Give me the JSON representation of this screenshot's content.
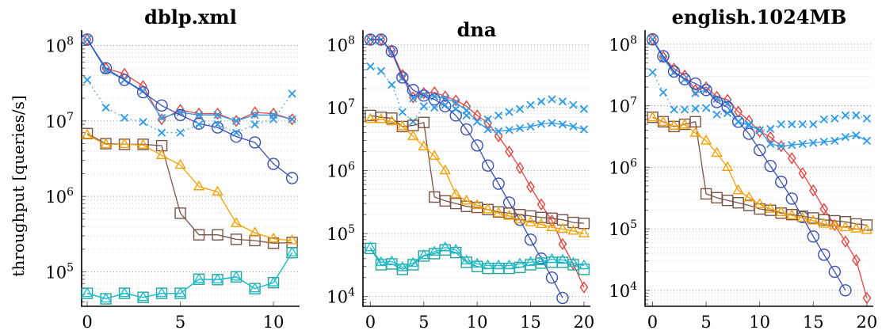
{
  "chart_data": [
    {
      "type": "line",
      "title": "dblp.xml",
      "xlabel": "",
      "ylabel": "throughput [queries/s]",
      "yscale": "log",
      "xlim": [
        -0.3,
        11.4
      ],
      "ylim": [
        35000,
        160000000
      ],
      "xticks": [
        0,
        5,
        10
      ],
      "yticks": [
        100000,
        1000000,
        10000000,
        100000000
      ],
      "ytick_labels": [
        "10^5",
        "10^6",
        "10^7",
        "10^8"
      ],
      "grid": true,
      "x": [
        0,
        1,
        2,
        3,
        4,
        5,
        6,
        7,
        8,
        9,
        10,
        11
      ],
      "series": [
        {
          "name": "red-diamond",
          "color": "#e8433c",
          "marker": "diamond",
          "style": "solid",
          "values": [
            120000000,
            50000000,
            42000000,
            29000000,
            10500000,
            14000000,
            12500000,
            12500000,
            10000000,
            13000000,
            12500000,
            10500000
          ]
        },
        {
          "name": "lightblue-x-solid",
          "color": "#2e9be8",
          "marker": "x",
          "style": "solid",
          "values": [
            120000000,
            47000000,
            35000000,
            25000000,
            11000000,
            13000000,
            12000000,
            12000000,
            10000000,
            12000000,
            12000000,
            10500000
          ]
        },
        {
          "name": "blue-circle",
          "color": "#3a4fb5",
          "marker": "circle",
          "style": "solid",
          "values": [
            120000000,
            50000000,
            35000000,
            24000000,
            16000000,
            12000000,
            9200000,
            8200000,
            6200000,
            5200000,
            2700000,
            1750000
          ]
        },
        {
          "name": "lightblue-x-dotted",
          "color": "#2e9be8",
          "marker": "x",
          "style": "dotted",
          "values": [
            35000000,
            15000000,
            11000000,
            9700000,
            7000000,
            7000000,
            9000000,
            9000000,
            7000000,
            9000000,
            10500000,
            23000000
          ]
        },
        {
          "name": "brown-square",
          "color": "#7a5448",
          "marker": "square",
          "style": "solid",
          "values": [
            6800000,
            5000000,
            4900000,
            4900000,
            4700000,
            600000,
            310000,
            310000,
            270000,
            260000,
            240000,
            245000
          ]
        },
        {
          "name": "orange-triangle",
          "color": "#f5a000",
          "marker": "triangle",
          "style": "solid",
          "values": [
            6500000,
            4900000,
            4900000,
            4800000,
            3500000,
            2600000,
            1350000,
            1150000,
            440000,
            330000,
            275000,
            260000
          ]
        },
        {
          "name": "teal-square",
          "color": "#26a69a",
          "marker": "square",
          "style": "solid",
          "values": [
            52000,
            44000,
            52000,
            46000,
            52000,
            52000,
            80000,
            79000,
            86000,
            60000,
            72000,
            180000
          ]
        },
        {
          "name": "cyan-triangle",
          "color": "#1fbcd2",
          "marker": "triangle",
          "style": "solid",
          "values": [
            52000,
            44000,
            52000,
            46000,
            52000,
            52000,
            80000,
            79000,
            86000,
            60000,
            72000,
            180000
          ]
        }
      ]
    },
    {
      "type": "line",
      "title": "dna",
      "xlabel": "",
      "ylabel": "",
      "yscale": "log",
      "xlim": [
        -0.7,
        20.6
      ],
      "ylim": [
        7000,
        170000000
      ],
      "xticks": [
        0,
        5,
        10,
        15,
        20
      ],
      "yticks": [
        10000,
        100000,
        1000000,
        10000000,
        100000000
      ],
      "ytick_labels": [
        "10^4",
        "10^5",
        "10^6",
        "10^7",
        "10^8"
      ],
      "grid": true,
      "x": [
        0,
        1,
        2,
        3,
        4,
        5,
        6,
        7,
        8,
        9,
        10,
        11,
        12,
        13,
        14,
        15,
        16,
        17,
        18,
        19,
        20
      ],
      "series": [
        {
          "name": "red-diamond",
          "color": "#e8433c",
          "marker": "diamond",
          "style": "solid",
          "values": [
            120000000,
            120000000,
            80000000,
            33000000,
            14500000,
            17000000,
            17500000,
            15000000,
            13000000,
            10500000,
            7500000,
            5700000,
            3500000,
            2000000,
            1100000,
            550000,
            290000,
            160000,
            68000,
            33000,
            14000
          ]
        },
        {
          "name": "lightblue-x-solid",
          "color": "#2e9be8",
          "marker": "x",
          "style": "solid",
          "values": [
            120000000,
            120000000,
            75000000,
            30000000,
            14000000,
            16000000,
            15000000,
            14000000,
            12000000,
            9000000,
            6000000,
            4500000,
            4200000,
            4400000,
            4700000,
            5000000,
            5500000,
            5700000,
            5400000,
            5000000,
            4500000
          ]
        },
        {
          "name": "blue-circle",
          "color": "#3a4fb5",
          "marker": "circle",
          "style": "solid",
          "values": [
            120000000,
            120000000,
            78000000,
            30000000,
            19000000,
            15500000,
            13500000,
            10500000,
            7500000,
            4500000,
            2500000,
            1200000,
            620000,
            310000,
            165000,
            80000,
            40000,
            20000,
            9500,
            null,
            null
          ]
        },
        {
          "name": "lightblue-x-dotted",
          "color": "#2e9be8",
          "marker": "x",
          "style": "dotted",
          "values": [
            45000000,
            38000000,
            23000000,
            8500000,
            6000000,
            10500000,
            10000000,
            11000000,
            9500000,
            7500000,
            6000000,
            6500000,
            7500000,
            8500000,
            9500000,
            11000000,
            12500000,
            13500000,
            12500000,
            11000000,
            9500000
          ]
        },
        {
          "name": "brown-square",
          "color": "#7a5448",
          "marker": "square",
          "style": "solid",
          "values": [
            7500000,
            7000000,
            6800000,
            5000000,
            5200000,
            5800000,
            380000,
            330000,
            300000,
            270000,
            260000,
            240000,
            220000,
            210000,
            200000,
            190000,
            180000,
            175000,
            165000,
            150000,
            145000
          ]
        },
        {
          "name": "orange-triangle",
          "color": "#f5a000",
          "marker": "triangle",
          "style": "solid",
          "values": [
            6500000,
            6500000,
            6000000,
            5000000,
            3500000,
            2400000,
            1700000,
            1000000,
            420000,
            330000,
            280000,
            240000,
            210000,
            190000,
            165000,
            150000,
            140000,
            125000,
            118000,
            110000,
            100000
          ]
        },
        {
          "name": "teal-square",
          "color": "#26a69a",
          "marker": "square",
          "style": "solid",
          "values": [
            58000,
            32000,
            33000,
            27000,
            32000,
            44000,
            48000,
            55000,
            50000,
            35000,
            30000,
            28000,
            28000,
            28000,
            29000,
            32000,
            34000,
            35000,
            35000,
            32000,
            27000
          ]
        },
        {
          "name": "cyan-triangle",
          "color": "#1fbcd2",
          "marker": "triangle",
          "style": "solid",
          "values": [
            60000,
            35000,
            36000,
            29000,
            34000,
            45000,
            51000,
            60000,
            55000,
            37000,
            33000,
            31000,
            31000,
            31000,
            33000,
            35000,
            36000,
            39000,
            38000,
            34000,
            31000
          ]
        }
      ]
    },
    {
      "type": "line",
      "title": "english.1024MB",
      "xlabel": "",
      "ylabel": "",
      "yscale": "log",
      "xlim": [
        -0.7,
        20.6
      ],
      "ylim": [
        5500,
        170000000
      ],
      "xticks": [
        0,
        5,
        10,
        15,
        20
      ],
      "yticks": [
        10000,
        100000,
        1000000,
        10000000,
        100000000
      ],
      "ytick_labels": [
        "10^4",
        "10^5",
        "10^6",
        "10^7",
        "10^8"
      ],
      "grid": true,
      "x": [
        0,
        1,
        2,
        3,
        4,
        5,
        6,
        7,
        8,
        9,
        10,
        11,
        12,
        13,
        14,
        15,
        16,
        17,
        18,
        19,
        20
      ],
      "series": [
        {
          "name": "red-diamond",
          "color": "#e8433c",
          "marker": "diamond",
          "style": "solid",
          "values": [
            120000000,
            62000000,
            40000000,
            31000000,
            18000000,
            20000000,
            14000000,
            12500000,
            8000000,
            5700000,
            3800000,
            3100000,
            2200000,
            1400000,
            800000,
            420000,
            210000,
            115000,
            62000,
            31000,
            7500
          ]
        },
        {
          "name": "lightblue-x-solid",
          "color": "#2e9be8",
          "marker": "x",
          "style": "solid",
          "values": [
            120000000,
            58000000,
            35000000,
            27000000,
            16000000,
            18000000,
            13000000,
            11000000,
            5500000,
            4800000,
            4000000,
            2400000,
            2200000,
            2300000,
            2400000,
            2500000,
            2600000,
            2700000,
            3100000,
            3300000,
            2700000
          ]
        },
        {
          "name": "blue-circle",
          "color": "#3a4fb5",
          "marker": "circle",
          "style": "solid",
          "values": [
            120000000,
            64000000,
            36000000,
            27000000,
            23000000,
            18000000,
            11500000,
            9500000,
            5500000,
            3500000,
            1900000,
            1050000,
            580000,
            310000,
            155000,
            75000,
            38000,
            20000,
            10000,
            null,
            null
          ]
        },
        {
          "name": "lightblue-x-dotted",
          "color": "#2e9be8",
          "marker": "x",
          "style": "dotted",
          "values": [
            35000000,
            16500000,
            8700000,
            8700000,
            9000000,
            9200000,
            7200000,
            7600000,
            5500000,
            5000000,
            4000000,
            4200000,
            5000000,
            5000000,
            5000000,
            5000000,
            6000000,
            6200000,
            7000000,
            7000000,
            6200000
          ]
        },
        {
          "name": "brown-square",
          "color": "#7a5448",
          "marker": "square",
          "style": "solid",
          "values": [
            6500000,
            5500000,
            4600000,
            5000000,
            5500000,
            370000,
            320000,
            290000,
            265000,
            240000,
            210000,
            200000,
            180000,
            170000,
            160000,
            150000,
            140000,
            135000,
            130000,
            120000,
            115000
          ]
        },
        {
          "name": "orange-triangle",
          "color": "#f5a000",
          "marker": "triangle",
          "style": "solid",
          "values": [
            6400000,
            5400000,
            4700000,
            4900000,
            3600000,
            2700000,
            1700000,
            1000000,
            420000,
            320000,
            250000,
            210000,
            185000,
            165000,
            150000,
            135000,
            120000,
            112000,
            105000,
            100000,
            95000
          ]
        }
      ]
    }
  ]
}
